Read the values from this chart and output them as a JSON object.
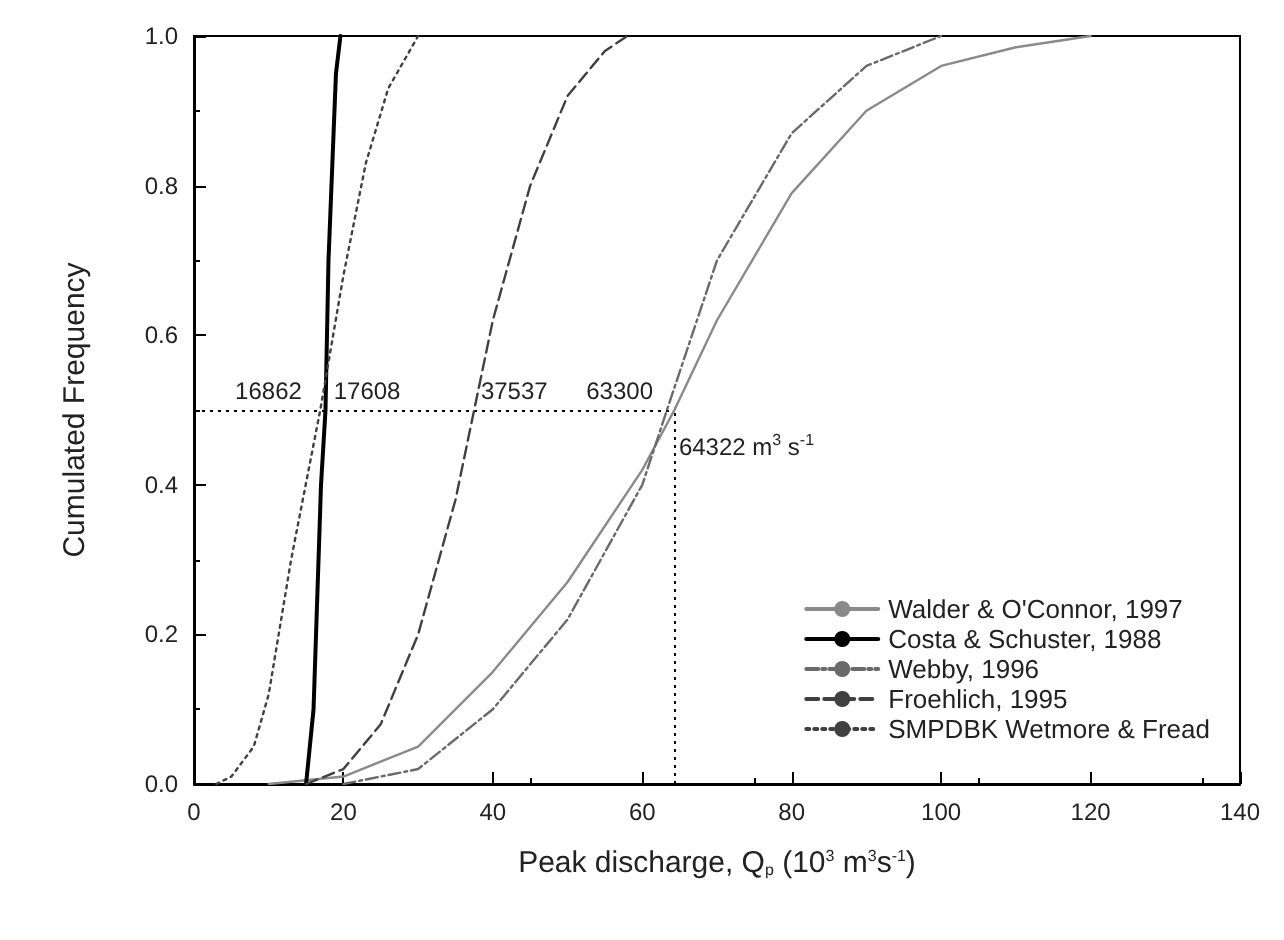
{
  "chart_data": {
    "type": "line",
    "xlabel": "Peak discharge, Q$_{p}$ (10$^{3}$ m$^{3}$s$^{-1}$)",
    "ylabel": "Cumulated Frequency",
    "xlim": [
      0,
      140
    ],
    "xticks": [
      0,
      20,
      40,
      60,
      80,
      100,
      120,
      140
    ],
    "ylim": [
      0,
      1
    ],
    "yticks": [
      {
        "value": 0,
        "label": "0.0"
      },
      {
        "value": 0.2,
        "label": "0.2"
      },
      {
        "value": 0.4,
        "label": "0.4"
      },
      {
        "value": 0.6,
        "label": "0.6"
      },
      {
        "value": 0.8,
        "label": "0.8"
      },
      {
        "value": 1,
        "label": "1.0"
      }
    ],
    "grid": false,
    "legend": "bottom right",
    "marker": "none",
    "series": [
      {
        "name": "Walder & O'Connor, 1997",
        "color": "#8a8a8a",
        "line_style": "solid",
        "x": [
          10,
          20,
          30,
          40,
          50,
          60,
          64.3,
          70,
          80,
          90,
          100,
          110,
          120
        ],
        "values": [
          0,
          0.01,
          0.05,
          0.15,
          0.27,
          0.42,
          0.5,
          0.62,
          0.79,
          0.9,
          0.96,
          0.985,
          1
        ]
      },
      {
        "name": "Costa & Schuster, 1988",
        "color": "#000000",
        "line_style": "solid",
        "x": [
          15,
          16,
          17,
          17.6,
          18,
          19,
          19.6
        ],
        "values": [
          0,
          0.1,
          0.4,
          0.5,
          0.7,
          0.95,
          1
        ]
      },
      {
        "name": "Webby, 1996",
        "color": "#6a6a6a",
        "line_style": "dashdot",
        "x": [
          20,
          30,
          40,
          50,
          60,
          63.3,
          70,
          80,
          90,
          100
        ],
        "values": [
          0,
          0.02,
          0.1,
          0.22,
          0.4,
          0.5,
          0.7,
          0.87,
          0.96,
          1
        ]
      },
      {
        "name": "Froehlich, 1995",
        "color": "#404040",
        "line_style": "dashed",
        "x": [
          15,
          20,
          25,
          30,
          35,
          37.5,
          40,
          45,
          50,
          55,
          58
        ],
        "values": [
          0,
          0.02,
          0.08,
          0.2,
          0.38,
          0.5,
          0.62,
          0.8,
          0.92,
          0.98,
          1
        ]
      },
      {
        "name": "SMPDBK Wetmore & Fread",
        "color": "#404040",
        "line_style": "dotted",
        "x": [
          3,
          5,
          8,
          10,
          13,
          16.9,
          20,
          23,
          26,
          30
        ],
        "values": [
          0,
          0.01,
          0.05,
          0.12,
          0.3,
          0.5,
          0.68,
          0.83,
          0.93,
          1
        ]
      }
    ],
    "ref_lines": [
      {
        "axis": "y",
        "value": 0.5,
        "label": null,
        "color": "#000000",
        "line_style": "dotted"
      },
      {
        "axis": "x",
        "value": 64.322,
        "label": null,
        "color": "#000000",
        "line_style": "dotted"
      }
    ],
    "annotations": [
      {
        "text": "16862",
        "x": 5.5,
        "y": 0.51
      },
      {
        "text": "17608",
        "x": 18.7,
        "y": 0.51
      },
      {
        "text": "37537",
        "x": 38.4,
        "y": 0.51
      },
      {
        "text": "63300",
        "x": 52.5,
        "y": 0.51
      },
      {
        "text": "64322 m$^{3}$ s$^{-1}$",
        "x": 64.9,
        "y": 0.43
      }
    ]
  }
}
